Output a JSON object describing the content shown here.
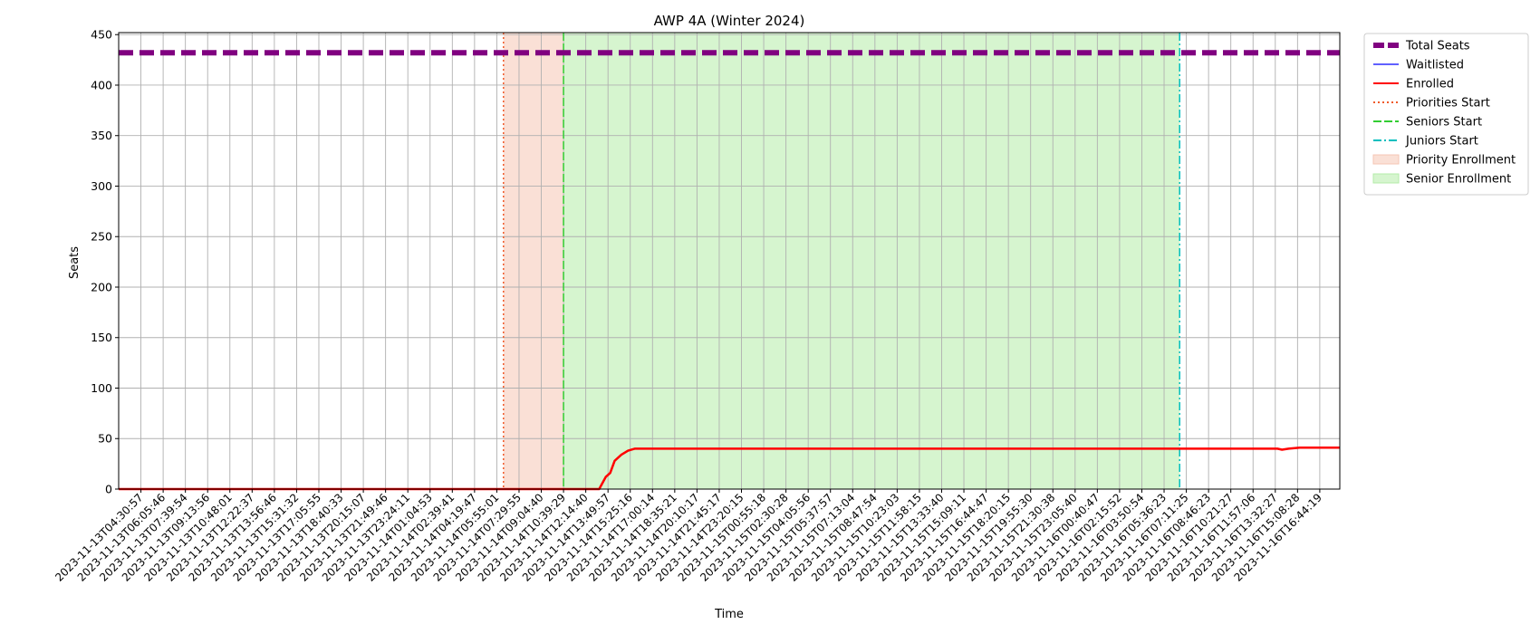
{
  "chart_data": {
    "type": "line",
    "title": "AWP 4A (Winter 2024)",
    "xlabel": "Time",
    "ylabel": "Seats",
    "ylim": [
      0,
      452
    ],
    "yticks": [
      0,
      50,
      100,
      150,
      200,
      250,
      300,
      350,
      400,
      450
    ],
    "grid": true,
    "legend_position": "outside-top-right",
    "x_tick_labels": [
      "2023-11-13T04:30:57",
      "2023-11-13T06:05:46",
      "2023-11-13T07:39:54",
      "2023-11-13T09:13:56",
      "2023-11-13T10:48:01",
      "2023-11-13T12:22:37",
      "2023-11-13T13:56:46",
      "2023-11-13T15:31:32",
      "2023-11-13T17:05:55",
      "2023-11-13T18:40:33",
      "2023-11-13T20:15:07",
      "2023-11-13T21:49:46",
      "2023-11-13T23:24:11",
      "2023-11-14T01:04:53",
      "2023-11-14T02:39:41",
      "2023-11-14T04:19:47",
      "2023-11-14T05:55:01",
      "2023-11-14T07:29:55",
      "2023-11-14T09:04:40",
      "2023-11-14T10:39:29",
      "2023-11-14T12:14:40",
      "2023-11-14T13:49:57",
      "2023-11-14T15:25:16",
      "2023-11-14T17:00:14",
      "2023-11-14T18:35:21",
      "2023-11-14T20:10:17",
      "2023-11-14T21:45:17",
      "2023-11-14T23:20:15",
      "2023-11-15T00:55:18",
      "2023-11-15T02:30:28",
      "2023-11-15T04:05:56",
      "2023-11-15T05:37:57",
      "2023-11-15T07:13:04",
      "2023-11-15T08:47:54",
      "2023-11-15T10:23:03",
      "2023-11-15T11:58:15",
      "2023-11-15T13:33:40",
      "2023-11-15T15:09:11",
      "2023-11-15T16:44:47",
      "2023-11-15T18:20:15",
      "2023-11-15T19:55:30",
      "2023-11-15T21:30:38",
      "2023-11-15T23:05:40",
      "2023-11-16T00:40:47",
      "2023-11-16T02:15:52",
      "2023-11-16T03:50:54",
      "2023-11-16T05:36:23",
      "2023-11-16T07:11:25",
      "2023-11-16T08:46:23",
      "2023-11-16T10:21:27",
      "2023-11-16T11:57:06",
      "2023-11-16T13:32:27",
      "2023-11-16T15:08:28",
      "2023-11-16T16:44:19"
    ],
    "x_range": [
      -1,
      53.9
    ],
    "series": [
      {
        "name": "Total Seats",
        "style": "dashed-thick",
        "color": "#800080",
        "points": [
          [
            -1,
            432
          ],
          [
            53.9,
            432
          ]
        ]
      },
      {
        "name": "Waitlisted",
        "style": "solid-thin",
        "color": "#0000ff",
        "points": []
      },
      {
        "name": "Enrolled",
        "style": "solid",
        "color": "#ff0000",
        "points": [
          [
            -1,
            0
          ],
          [
            19.3,
            0
          ],
          [
            20.6,
            0
          ],
          [
            20.9,
            12
          ],
          [
            21.1,
            16
          ],
          [
            21.3,
            28
          ],
          [
            21.6,
            34
          ],
          [
            21.9,
            38
          ],
          [
            22.2,
            40
          ],
          [
            22.6,
            40
          ],
          [
            51.1,
            40
          ],
          [
            51.3,
            39
          ],
          [
            51.6,
            40
          ],
          [
            52.1,
            41
          ],
          [
            53.9,
            41
          ]
        ]
      }
    ],
    "markers": [
      {
        "name": "Priorities Start",
        "style": "dotted",
        "color": "#f05a28",
        "x": 16.3
      },
      {
        "name": "Seniors Start",
        "style": "dashed",
        "color": "#32cd32",
        "x": 19
      },
      {
        "name": "Juniors Start",
        "style": "dashdot",
        "color": "#00bfbf",
        "x": 46.7
      }
    ],
    "spans": [
      {
        "name": "Priority Enrollment",
        "color": "#f5c6b4",
        "from": 16.3,
        "to": 19
      },
      {
        "name": "Senior Enrollment",
        "color": "#b4eca8",
        "from": 19,
        "to": 46.7
      }
    ]
  }
}
